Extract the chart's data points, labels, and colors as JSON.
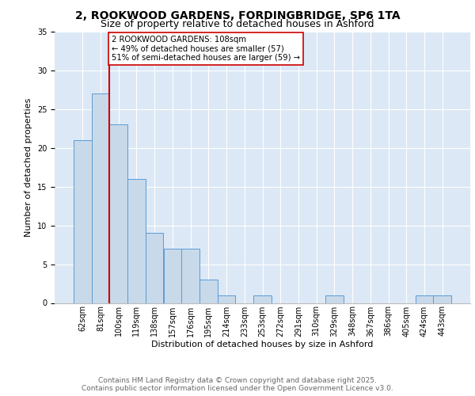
{
  "title_line1": "2, ROOKWOOD GARDENS, FORDINGBRIDGE, SP6 1TA",
  "title_line2": "Size of property relative to detached houses in Ashford",
  "xlabel": "Distribution of detached houses by size in Ashford",
  "ylabel": "Number of detached properties",
  "categories": [
    "62sqm",
    "81sqm",
    "100sqm",
    "119sqm",
    "138sqm",
    "157sqm",
    "176sqm",
    "195sqm",
    "214sqm",
    "233sqm",
    "253sqm",
    "272sqm",
    "291sqm",
    "310sqm",
    "329sqm",
    "348sqm",
    "367sqm",
    "386sqm",
    "405sqm",
    "424sqm",
    "443sqm"
  ],
  "values": [
    21,
    27,
    23,
    16,
    9,
    7,
    7,
    3,
    1,
    0,
    1,
    0,
    0,
    0,
    1,
    0,
    0,
    0,
    0,
    1,
    1
  ],
  "bar_color": "#c8d9ea",
  "bar_edge_color": "#5b9bd5",
  "ylim": [
    0,
    35
  ],
  "yticks": [
    0,
    5,
    10,
    15,
    20,
    25,
    30,
    35
  ],
  "vline_x": 1.5,
  "vline_color": "#cc0000",
  "annotation_box_text": "2 ROOKWOOD GARDENS: 108sqm\n← 49% of detached houses are smaller (57)\n51% of semi-detached houses are larger (59) →",
  "annotation_box_color": "#ffffff",
  "annotation_box_edge_color": "#cc0000",
  "footer_text": "Contains HM Land Registry data © Crown copyright and database right 2025.\nContains public sector information licensed under the Open Government Licence v3.0.",
  "background_color": "#dce8f5",
  "fig_bg_color": "#ffffff",
  "title1_fontsize": 10,
  "title2_fontsize": 9,
  "ylabel_fontsize": 8,
  "xlabel_fontsize": 8,
  "tick_fontsize": 7,
  "footer_fontsize": 6.5
}
